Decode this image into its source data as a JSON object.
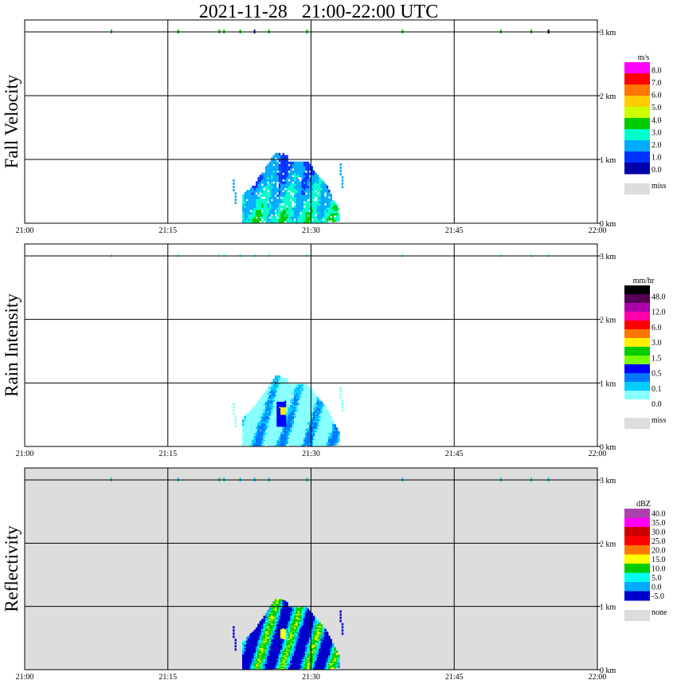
{
  "title": "2021-11-28   21:00-22:00 UTC",
  "x_ticks": [
    "21:00",
    "21:15",
    "21:30",
    "21:45",
    "22:00"
  ],
  "y_ticks": [
    "0 km",
    "1 km",
    "2 km",
    "3 km"
  ],
  "chart_data": [
    {
      "type": "heatmap",
      "panel": "Fall Velocity",
      "ylabel": "Fall Velocity",
      "xlim_minutes": [
        0,
        60
      ],
      "ylim_km": [
        0,
        3.0
      ],
      "grid": true,
      "background": "#ffffff",
      "colorbar": {
        "unit": "m/s",
        "labels": [
          "8.0",
          "7.0",
          "6.0",
          "5.0",
          "4.0",
          "3.0",
          "2.0",
          "1.0",
          "0.0"
        ],
        "colors": [
          "#ff00ff",
          "#ff0000",
          "#ff7700",
          "#ffcc00",
          "#ccff00",
          "#00cc00",
          "#00ffcc",
          "#00aaff",
          "#0033ff",
          "#0000aa"
        ],
        "missing_label": "miss",
        "missing_color": "#dddddd"
      },
      "echo": {
        "time_range_minutes": [
          22.8,
          33.3
        ],
        "top_km": 1.1,
        "dominant_values": [
          1.5,
          2.5,
          3.5
        ]
      },
      "upper_speckles": [
        {
          "t": 9.0,
          "color": "#00cc00"
        },
        {
          "t": 16.0,
          "color": "#00cc00"
        },
        {
          "t": 20.3,
          "color": "#00cc00"
        },
        {
          "t": 20.8,
          "color": "#00cc00"
        },
        {
          "t": 22.5,
          "color": "#00cc00"
        },
        {
          "t": 24.0,
          "color": "#0000aa"
        },
        {
          "t": 25.5,
          "color": "#00cc00"
        },
        {
          "t": 29.5,
          "color": "#00cc00"
        },
        {
          "t": 39.5,
          "color": "#00cc00"
        },
        {
          "t": 49.8,
          "color": "#00cc00"
        },
        {
          "t": 53.0,
          "color": "#00cc00"
        },
        {
          "t": 54.8,
          "color": "#000000"
        }
      ]
    },
    {
      "type": "heatmap",
      "panel": "Rain Intensity",
      "ylabel": "Rain Intensity",
      "xlim_minutes": [
        0,
        60
      ],
      "ylim_km": [
        0,
        3.0
      ],
      "grid": true,
      "background": "#ffffff",
      "colorbar": {
        "unit": "mm/hr",
        "labels": [
          "48.0",
          "12.0",
          "6.0",
          "3.0",
          "1.5",
          "0.5",
          "0.1",
          "0.0"
        ],
        "colors": [
          "#000000",
          "#550055",
          "#aa00aa",
          "#ff00aa",
          "#ff0000",
          "#ff7700",
          "#ffee00",
          "#00cc00",
          "#77ff00",
          "#0000ff",
          "#0077ff",
          "#00ccff",
          "#88ffff",
          "#ffffff"
        ],
        "missing_label": "miss",
        "missing_color": "#dddddd"
      },
      "echo": {
        "time_range_minutes": [
          22.8,
          32.8
        ],
        "top_km": 1.1,
        "dominant_values": [
          0.1,
          0.5
        ]
      },
      "upper_speckles": [
        {
          "t": 9.0,
          "color": "#88ffff"
        },
        {
          "t": 16.0,
          "color": "#88ffff"
        },
        {
          "t": 20.3,
          "color": "#88ffff"
        },
        {
          "t": 20.8,
          "color": "#88ffff"
        },
        {
          "t": 22.5,
          "color": "#88ffff"
        },
        {
          "t": 24.0,
          "color": "#88ffff"
        },
        {
          "t": 25.5,
          "color": "#88ffff"
        },
        {
          "t": 29.5,
          "color": "#88ffff"
        },
        {
          "t": 39.5,
          "color": "#88ffff"
        },
        {
          "t": 49.8,
          "color": "#88ffff"
        },
        {
          "t": 53.0,
          "color": "#88ffff"
        },
        {
          "t": 54.8,
          "color": "#88ffff"
        }
      ]
    },
    {
      "type": "heatmap",
      "panel": "Reflectivity",
      "ylabel": "Reflectivity",
      "xlim_minutes": [
        0,
        60
      ],
      "ylim_km": [
        0,
        3.0
      ],
      "grid": true,
      "background": "#dddddd",
      "colorbar": {
        "unit": "dBZ",
        "labels": [
          "40.0",
          "35.0",
          "30.0",
          "25.0",
          "20.0",
          "15.0",
          "10.0",
          "5.0",
          "0.0",
          "-5.0"
        ],
        "colors": [
          "#aa44aa",
          "#ff00ff",
          "#cc0000",
          "#ff0000",
          "#ff7700",
          "#ffff00",
          "#00cc00",
          "#00ffee",
          "#00aaff",
          "#0000cc"
        ],
        "missing_label": "none",
        "missing_color": "#dddddd"
      },
      "echo": {
        "time_range_minutes": [
          22.8,
          33.3
        ],
        "top_km": 1.1,
        "dominant_values": [
          0.0,
          5.0,
          10.0,
          20.0
        ]
      },
      "upper_speckles": [
        {
          "t": 9.0,
          "color": "#00ccdd"
        },
        {
          "t": 16.0,
          "color": "#00ccdd"
        },
        {
          "t": 20.3,
          "color": "#00ccdd"
        },
        {
          "t": 20.8,
          "color": "#00ccdd"
        },
        {
          "t": 22.5,
          "color": "#00ccdd"
        },
        {
          "t": 24.0,
          "color": "#00ccdd"
        },
        {
          "t": 25.5,
          "color": "#00ccdd"
        },
        {
          "t": 29.5,
          "color": "#00ccdd"
        },
        {
          "t": 39.5,
          "color": "#00ccdd"
        },
        {
          "t": 49.8,
          "color": "#00ccdd"
        },
        {
          "t": 53.0,
          "color": "#00ccdd"
        },
        {
          "t": 54.8,
          "color": "#00ccdd"
        }
      ]
    }
  ]
}
